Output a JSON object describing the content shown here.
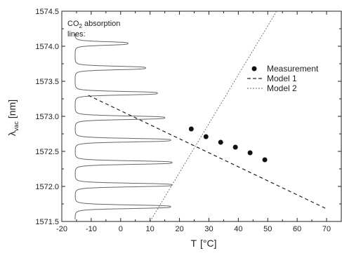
{
  "chart_data": {
    "type": "scatter",
    "title": "",
    "xlabel": "T",
    "xlabel_unit": "[°C]",
    "ylabel_base": "λ",
    "ylabel_sub": "vac",
    "ylabel_unit": "[nm]",
    "xlim": [
      -20,
      75
    ],
    "ylim": [
      1571.5,
      1574.5
    ],
    "xticks": [
      -20,
      -10,
      0,
      10,
      20,
      30,
      40,
      50,
      60,
      70
    ],
    "yticks": [
      1571.5,
      1572.0,
      1572.5,
      1573.0,
      1573.5,
      1574.0,
      1574.5
    ],
    "ytick_labels": [
      "1571.5",
      "1572.0",
      "1572.5",
      "1573.0",
      "1573.5",
      "1574.0",
      "1574.5"
    ],
    "grid": false,
    "legend_position": "right",
    "series": [
      {
        "name": "Measurement",
        "kind": "points",
        "x": [
          24,
          29,
          34,
          39,
          44,
          49
        ],
        "y": [
          1572.82,
          1572.71,
          1572.63,
          1572.56,
          1572.48,
          1572.38
        ]
      },
      {
        "name": "Model 1",
        "kind": "dashed-line",
        "x": [
          -11,
          70
        ],
        "y": [
          1573.3,
          1571.68
        ]
      },
      {
        "name": "Model 2",
        "kind": "dotted-line",
        "x": [
          10,
          53
        ],
        "y": [
          1571.5,
          1574.5
        ]
      }
    ],
    "absorption_lines": {
      "label_prefix": "CO",
      "label_sub": "2",
      "label_rest": " absorption",
      "label_line2": "lines:",
      "baseline_x": -15.5,
      "peaks": [
        {
          "y": 1574.04,
          "x": 2.5
        },
        {
          "y": 1573.69,
          "x": 8.5
        },
        {
          "y": 1573.33,
          "x": 12.5
        },
        {
          "y": 1572.98,
          "x": 15.0
        },
        {
          "y": 1572.66,
          "x": 17.0
        },
        {
          "y": 1572.34,
          "x": 17.5
        },
        {
          "y": 1572.02,
          "x": 17.5
        },
        {
          "y": 1571.71,
          "x": 17.0
        }
      ]
    }
  }
}
